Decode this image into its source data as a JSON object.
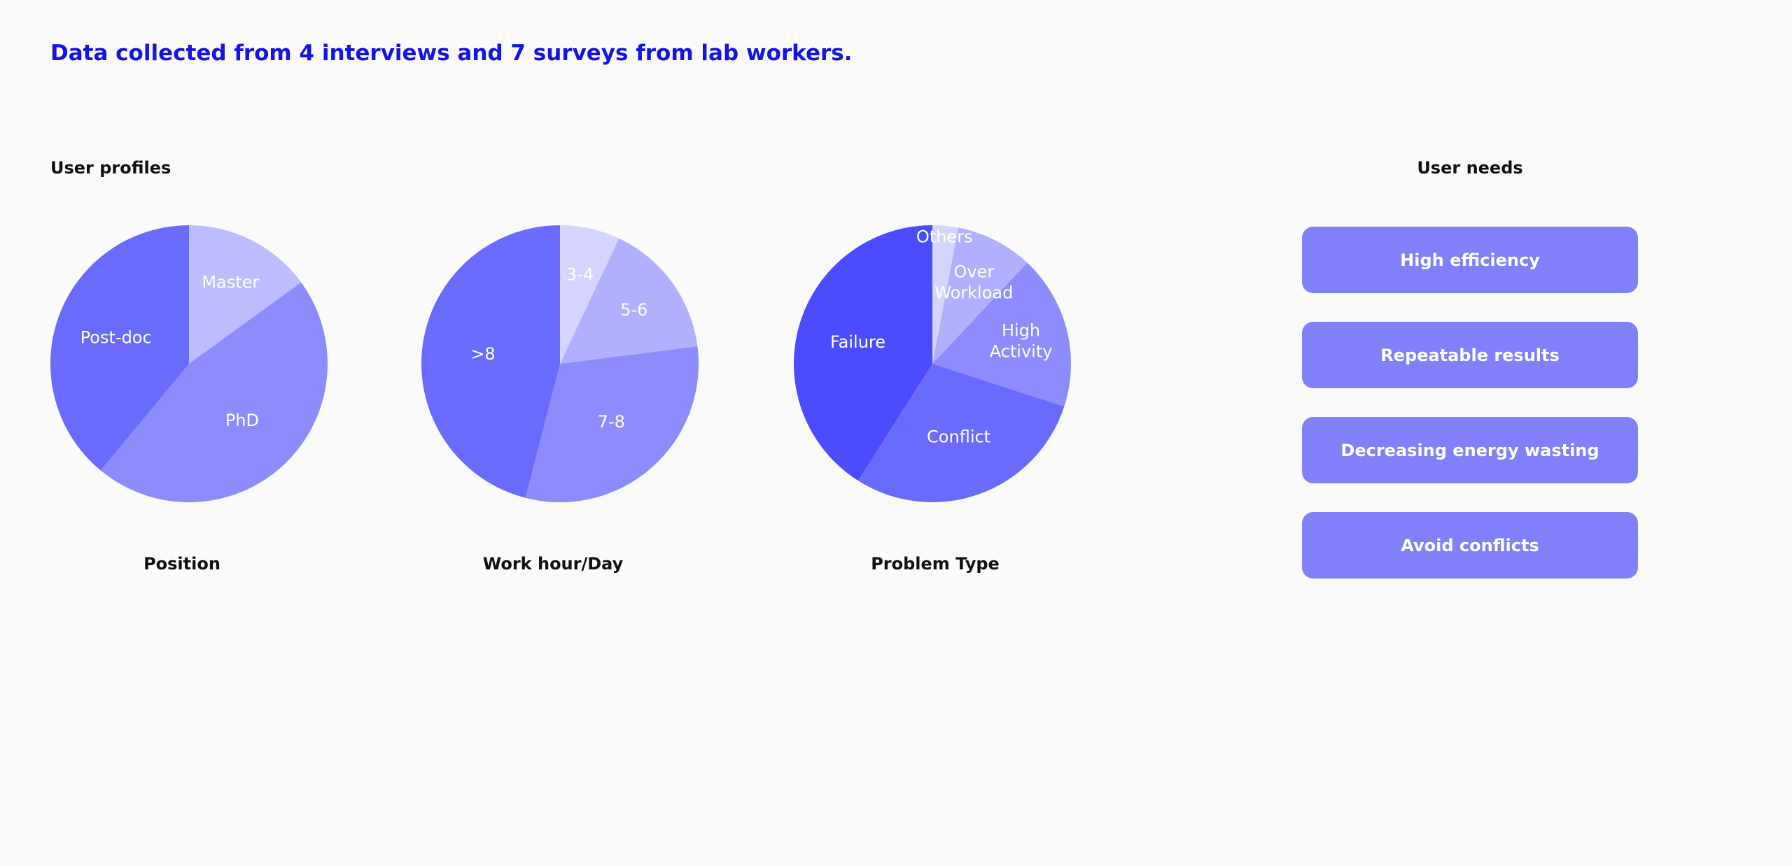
{
  "headline": "Data collected from 4 interviews and 7 surveys from lab workers.",
  "sections": {
    "profiles_label": "User profiles",
    "needs_label": "User needs"
  },
  "chart_data": [
    {
      "type": "pie",
      "title": "Position",
      "slices": [
        {
          "label": "Master",
          "value": 15,
          "color": "#bcbcff"
        },
        {
          "label": "PhD",
          "value": 46,
          "color": "#8c8cff"
        },
        {
          "label": "Post-doc",
          "value": 39,
          "color": "#6a6aff"
        }
      ]
    },
    {
      "type": "pie",
      "title": "Work hour/Day",
      "slices": [
        {
          "label": "3-4",
          "value": 7,
          "color": "#d4d4ff"
        },
        {
          "label": "5-6",
          "value": 16,
          "color": "#b0b0ff"
        },
        {
          "label": "7-8",
          "value": 31,
          "color": "#8c8cff"
        },
        {
          "label": ">8",
          "value": 46,
          "color": "#6a6aff"
        }
      ]
    },
    {
      "type": "pie",
      "title": "Problem Type",
      "slices": [
        {
          "label": "Others",
          "value": 3,
          "color": "#d4d4ff"
        },
        {
          "label": "Over Workload",
          "value": 9,
          "color": "#b0b0ff"
        },
        {
          "label": "High Activity",
          "value": 18,
          "color": "#8c8cff"
        },
        {
          "label": "Conflict",
          "value": 29,
          "color": "#6a6aff"
        },
        {
          "label": "Failure",
          "value": 41,
          "color": "#4b4bff"
        }
      ]
    }
  ],
  "user_needs": [
    "High efficiency",
    "Repeatable results",
    "Decreasing energy wasting",
    "Avoid conflicts"
  ],
  "colors": {
    "headline": "#1414e6",
    "need_card": "#8080fa",
    "background": "#fafafa"
  }
}
